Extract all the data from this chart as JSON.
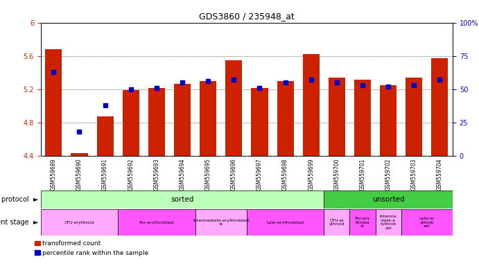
{
  "title": "GDS3860 / 235948_at",
  "samples": [
    "GSM559689",
    "GSM559690",
    "GSM559691",
    "GSM559692",
    "GSM559693",
    "GSM559694",
    "GSM559695",
    "GSM559696",
    "GSM559697",
    "GSM559698",
    "GSM559699",
    "GSM559700",
    "GSM559701",
    "GSM559702",
    "GSM559703",
    "GSM559704"
  ],
  "bar_values": [
    5.68,
    4.43,
    4.87,
    5.19,
    5.21,
    5.26,
    5.3,
    5.55,
    5.21,
    5.3,
    5.62,
    5.34,
    5.31,
    5.25,
    5.34,
    5.57
  ],
  "dot_values_pct": [
    63,
    18,
    38,
    50,
    51,
    55,
    56,
    57,
    51,
    55,
    57,
    55,
    53,
    52,
    53,
    57
  ],
  "ylim_left": [
    4.4,
    6.0
  ],
  "ylim_right": [
    0,
    100
  ],
  "yticks_left": [
    4.4,
    4.8,
    5.2,
    5.6,
    6.0
  ],
  "yticks_right": [
    0,
    25,
    50,
    75,
    100
  ],
  "ytick_labels_left": [
    "4.4",
    "4.8",
    "5.2",
    "5.6",
    "6"
  ],
  "ytick_labels_right": [
    "0",
    "25",
    "50",
    "75",
    "100%"
  ],
  "bar_color": "#cc2200",
  "dot_color": "#0000cc",
  "sorted_count": 11,
  "unsorted_count": 5,
  "protocol_sorted_color": "#bbffbb",
  "protocol_unsorted_color": "#44cc44",
  "dev_stage_data": [
    {
      "label": "CFU-erythroid",
      "start": 0,
      "end": 3,
      "color": "#ffaaff"
    },
    {
      "label": "Pro-erythroblast",
      "start": 3,
      "end": 6,
      "color": "#ff55ff"
    },
    {
      "label": "Intermediate-erythroblast\nst",
      "start": 6,
      "end": 8,
      "color": "#ffaaff"
    },
    {
      "label": "Late-erythroblast",
      "start": 8,
      "end": 11,
      "color": "#ff55ff"
    },
    {
      "label": "CFU-er\nythroid",
      "start": 11,
      "end": 12,
      "color": "#ffaaff"
    },
    {
      "label": "Pro-ery\nthroba\nst",
      "start": 12,
      "end": 13,
      "color": "#ff55ff"
    },
    {
      "label": "Interme\ndiate-e\nrythrob\nast",
      "start": 13,
      "end": 14,
      "color": "#ffaaff"
    },
    {
      "label": "Late-er\nythrob\nast",
      "start": 14,
      "end": 16,
      "color": "#ff55ff"
    }
  ],
  "tick_label_color_left": "#cc2200",
  "tick_label_color_right": "#0000cc",
  "xticklabel_bg": "#dddddd"
}
